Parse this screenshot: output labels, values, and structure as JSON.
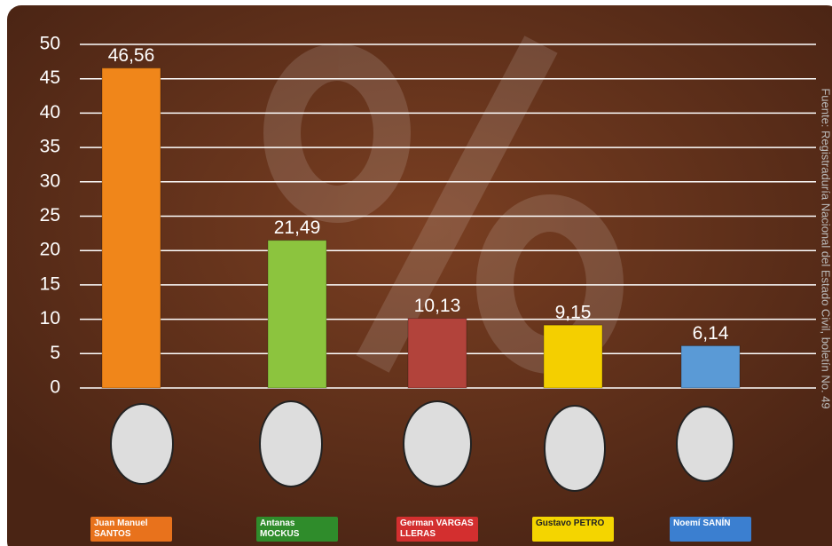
{
  "chart_data": {
    "type": "bar",
    "categories": [
      "Juan Manuel SANTOS",
      "Antanas MOCKUS",
      "German VARGAS LLERAS",
      "Gustavo PETRO",
      "Noemí SANÍN"
    ],
    "values": [
      46.56,
      21.49,
      10.13,
      9.15,
      6.14
    ],
    "value_labels": [
      "46,56",
      "21,49",
      "10,13",
      "9,15",
      "6,14"
    ],
    "colors": [
      "#f0861a",
      "#8cc43e",
      "#b2433b",
      "#f4cf00",
      "#5a9ad6"
    ],
    "label_colors": [
      "#e8721c",
      "#2f8c2b",
      "#d32f2f",
      "#f4d500",
      "#3b7fd0"
    ],
    "ylim": [
      0,
      50
    ],
    "yticks": [
      0,
      5,
      10,
      15,
      20,
      25,
      30,
      35,
      40,
      45,
      50
    ],
    "grid": true,
    "source": "Fuente: Registraduría Nacional del Estado Civil, boletín No. 49"
  }
}
